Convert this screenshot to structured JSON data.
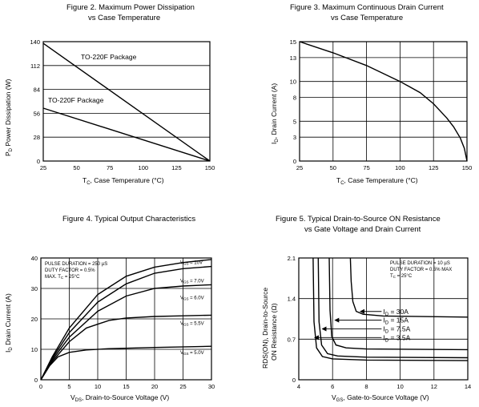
{
  "chart_data": [
    {
      "type": "line",
      "title": "Figure 2.   Maximum Power Dissipation",
      "subtitle": "vs Case Temperature",
      "xlabel": "T_C, Case Temperature (°C)",
      "ylabel": "P_D, Power Dissipation (W)",
      "xlim": [
        25,
        150
      ],
      "ylim": [
        0,
        140
      ],
      "xticks": [
        25,
        50,
        75,
        100,
        125,
        150
      ],
      "yticks": [
        0,
        28,
        56,
        84,
        112,
        140
      ],
      "grid": "horizontal",
      "series": [
        {
          "name": "TO-220F Package",
          "x": [
            25,
            150
          ],
          "y": [
            138,
            0
          ]
        },
        {
          "name": "TO-220F Package",
          "x": [
            25,
            150
          ],
          "y": [
            62,
            0
          ]
        }
      ]
    },
    {
      "type": "line",
      "title": "Figure 3.   Maximum Continuous Drain Current",
      "subtitle": "vs Case Temperature",
      "xlabel": "T_C, Case Temperature (°C)",
      "ylabel": "I_D, Drain Current (A)",
      "xlim": [
        25,
        150
      ],
      "ylim": [
        0,
        15
      ],
      "xticks": [
        25,
        50,
        75,
        100,
        125,
        150
      ],
      "yticks": [
        0,
        3,
        5,
        8,
        10,
        13,
        15
      ],
      "grid": "major",
      "series": [
        {
          "name": "",
          "x": [
            25,
            50,
            75,
            100,
            115,
            125,
            135,
            140,
            145,
            148,
            150
          ],
          "y": [
            15,
            13.6,
            12.0,
            10.0,
            8.6,
            7.2,
            5.4,
            4.3,
            2.9,
            1.6,
            0
          ]
        }
      ]
    },
    {
      "type": "line",
      "title": "Figure 4. Typical Output Characteristics",
      "xlabel": "V_DS, Drain-to-Source Voltage (V)",
      "ylabel": "I_D Drain Current (A)",
      "xlim": [
        0,
        30
      ],
      "ylim": [
        0,
        40
      ],
      "xticks": [
        0,
        5,
        10,
        15,
        20,
        25,
        30
      ],
      "yticks": [
        0,
        10,
        20,
        30,
        40
      ],
      "grid": "major",
      "annotations": [
        "PULSE DURATION = 250 µS",
        "DUTY FACTOR = 0.5%",
        "MAX. T_C = 25°C"
      ],
      "series": [
        {
          "name": "V_GS = 10V",
          "x": [
            0,
            2,
            5,
            10,
            15,
            20,
            25,
            30
          ],
          "y": [
            0,
            7.5,
            17,
            28,
            34,
            37,
            38.5,
            39.5
          ]
        },
        {
          "name": "V_GS = 7.0V",
          "x": [
            0,
            2,
            5,
            10,
            15,
            20,
            25,
            30
          ],
          "y": [
            0,
            7,
            15.5,
            25.5,
            31.5,
            35,
            36.5,
            37.2
          ]
        },
        {
          "name": "V_GS = 6.0V",
          "x": [
            0,
            2,
            5,
            10,
            15,
            20,
            25,
            30
          ],
          "y": [
            0,
            6.5,
            14,
            22.5,
            27.5,
            30,
            30.8,
            31.2
          ]
        },
        {
          "name": "V_GS = 5.5V",
          "x": [
            0,
            2,
            5,
            8,
            12,
            15,
            20,
            25,
            30
          ],
          "y": [
            0,
            6,
            12.5,
            17,
            19.5,
            20.3,
            20.8,
            21,
            21.2
          ]
        },
        {
          "name": "V_GS = 5.0V",
          "x": [
            0,
            1.5,
            3,
            5,
            8,
            12,
            20,
            30
          ],
          "y": [
            0,
            4.5,
            7.5,
            9,
            9.8,
            10.2,
            10.6,
            11
          ]
        }
      ]
    },
    {
      "type": "line",
      "title": "Figure 5.   Typical Drain-to-Source ON Resistance",
      "subtitle": "vs Gate Voltage and Drain Current",
      "xlabel": "V_GS, Gate-to-Source Voltage (V)",
      "ylabel": "RDS(ON), Drain-to-Source ON Resistance (Ω)",
      "xlim": [
        4,
        14
      ],
      "ylim": [
        0,
        2.1
      ],
      "xticks": [
        4,
        6,
        8,
        10,
        12,
        14
      ],
      "yticks": [
        0,
        0.7,
        1.4,
        2.1
      ],
      "grid": "major",
      "annotations": [
        "PULSE DURATION = 10 µS",
        "DUTY FACTOR = 0.5% MAX",
        "T_C = 25°C"
      ],
      "series": [
        {
          "name": "I_D = 30A",
          "x": [
            7.05,
            7.1,
            7.2,
            7.4,
            7.8,
            9,
            14
          ],
          "y": [
            2.1,
            1.7,
            1.35,
            1.18,
            1.13,
            1.1,
            1.08
          ]
        },
        {
          "name": "I_D = 15A",
          "x": [
            5.8,
            5.85,
            5.95,
            6.2,
            6.8,
            8,
            14
          ],
          "y": [
            2.1,
            1.2,
            0.75,
            0.6,
            0.55,
            0.53,
            0.52
          ]
        },
        {
          "name": "I_D = 7.5A",
          "x": [
            5.15,
            5.2,
            5.35,
            5.7,
            6.3,
            8,
            14
          ],
          "y": [
            2.1,
            1.0,
            0.6,
            0.45,
            0.41,
            0.39,
            0.38
          ]
        },
        {
          "name": "I_D = 3.5A",
          "x": [
            4.85,
            4.9,
            5.05,
            5.4,
            6,
            8,
            14
          ],
          "y": [
            2.1,
            1.0,
            0.55,
            0.4,
            0.36,
            0.34,
            0.33
          ]
        }
      ]
    }
  ],
  "labels": {
    "fig2_title": "Figure 2.   Maximum Power Dissipation",
    "fig2_subtitle": "vs Case Temperature",
    "fig2_ann1": "TO-220F Package",
    "fig2_ann2": "TO-220F Package",
    "fig3_title": "Figure 3.   Maximum Continuous Drain Current",
    "fig3_subtitle": "vs Case Temperature",
    "fig4_title": "Figure 4. Typical Output Characteristics",
    "fig4_ann1": "PULSE DURATION = 250 µS",
    "fig4_ann2": "DUTY FACTOR = 0.5%",
    "fig4_ann3": "MAX. T",
    "fig4_ann3_sub": "C",
    "fig4_ann3_tail": " = 25°C",
    "fig5_title": "Figure 5.   Typical Drain-to-Source ON Resistance",
    "fig5_subtitle": "vs Gate Voltage and Drain Current",
    "fig5_ann1": "PULSE DURATION = 10 µS",
    "fig5_ann2": "DUTY FACTOR = 0.5% MAX",
    "fig5_ann3": "T",
    "fig5_ann3_sub": "C",
    "fig5_ann3_tail": " = 25°C",
    "fig4_vgs": [
      "V",
      "GS",
      " = 10V",
      " = 7.0V",
      " = 6.0V",
      " = 5.5V",
      " = 5.0V"
    ],
    "fig5_id": [
      "I",
      "D",
      " = 30A",
      " = 15A",
      " = 7.5A",
      " = 3.5A"
    ],
    "fig2_xlab": [
      "T",
      "C",
      ", Case Temperature (°C)"
    ],
    "fig2_ylab": [
      "P",
      "D",
      "  Power Dissipation (W)"
    ],
    "fig3_xlab": [
      "T",
      "C",
      ", Case Temperature (°C)"
    ],
    "fig3_ylab": [
      "I",
      "D",
      ", Drain Current (A)"
    ],
    "fig4_xlab": [
      "V",
      "DS",
      ", Drain-to-Source Voltage (V)"
    ],
    "fig4_ylab": [
      "I",
      "D",
      " Drain Current (A)"
    ],
    "fig5_xlab": [
      "V",
      "GS",
      ", Gate-to-Source Voltage (V)"
    ],
    "fig5_ylab1": "RDS(ON), Drain-to-Source",
    "fig5_ylab2": "ON Resistance (Ω)"
  }
}
